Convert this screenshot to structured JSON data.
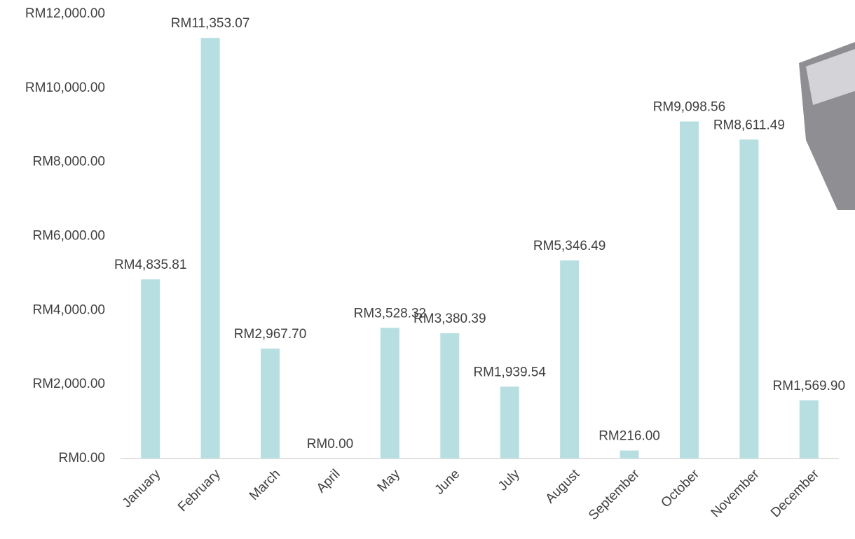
{
  "chart_data": {
    "type": "bar",
    "categories": [
      "January",
      "February",
      "March",
      "April",
      "May",
      "June",
      "July",
      "August",
      "September",
      "October",
      "November",
      "December"
    ],
    "values": [
      4835.81,
      11353.07,
      2967.7,
      0,
      3528.32,
      3380.39,
      1939.54,
      5346.49,
      216.0,
      9098.56,
      8611.49,
      1569.9
    ],
    "value_labels": [
      "RM4,835.81",
      "RM11,353.07",
      "RM2,967.70",
      "RM0.00",
      "RM3,528.32",
      "RM3,380.39",
      "RM1,939.54",
      "RM5,346.49",
      "RM216.00",
      "RM9,098.56",
      "RM8,611.49",
      "RM1,569.90"
    ],
    "color": "#b7dfe2",
    "ylim": [
      0,
      12000
    ],
    "yticks": [
      {
        "value": 0,
        "label": "RM0.00"
      },
      {
        "value": 2000,
        "label": "RM2,000.00"
      },
      {
        "value": 4000,
        "label": "RM4,000.00"
      },
      {
        "value": 6000,
        "label": "RM6,000.00"
      },
      {
        "value": 8000,
        "label": "RM8,000.00"
      },
      {
        "value": 10000,
        "label": "RM10,000.00"
      },
      {
        "value": 12000,
        "label": "RM12,000.00"
      }
    ],
    "grid": false
  }
}
